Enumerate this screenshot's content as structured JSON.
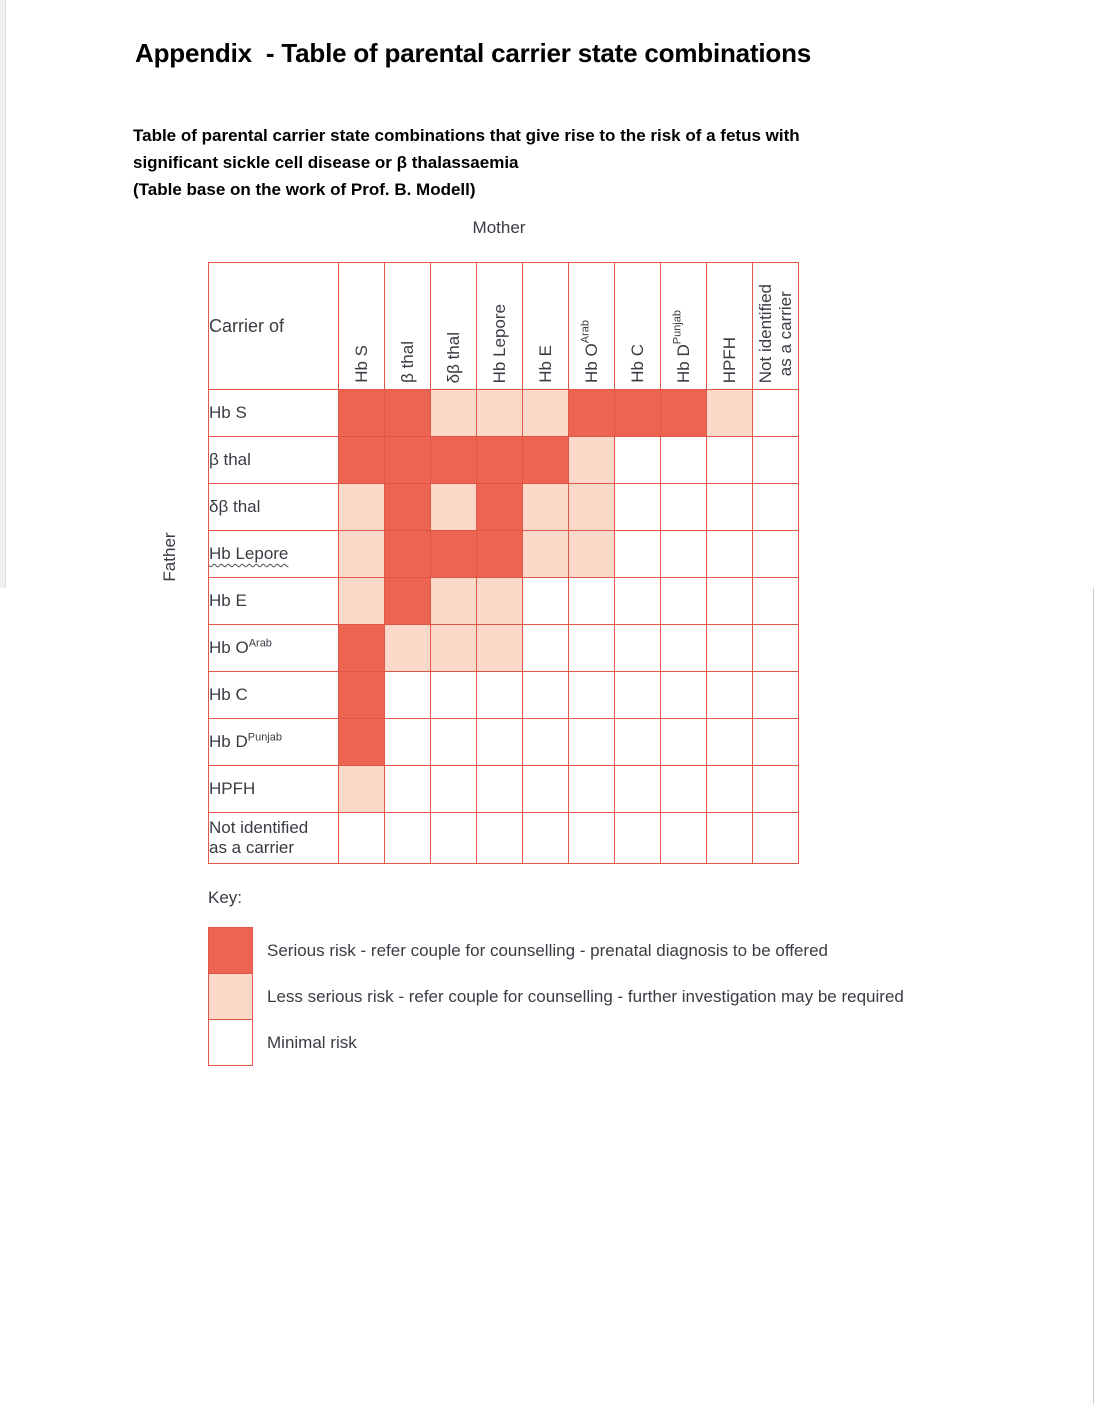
{
  "page": {
    "title": "Appendix  - Table of parental carrier state combinations",
    "subtitle_lines": [
      "Table of parental carrier state combinations that give rise to the risk of a fetus with",
      "significant sickle cell disease or β thalassaemia",
      "(Table base on the work of Prof. B. Modell)"
    ]
  },
  "table": {
    "mother_label": "Mother",
    "father_label": "Father",
    "corner_label": "Carrier of",
    "cell_legend": {
      "0": "minimal",
      "1": "less",
      "2": "serious"
    },
    "columns": [
      {
        "id": "hb-s",
        "text": "Hb S"
      },
      {
        "id": "beta-thal",
        "text": "β thal"
      },
      {
        "id": "delta-beta-thal",
        "text": "δβ thal"
      },
      {
        "id": "hb-lepore",
        "text": "Hb Lepore"
      },
      {
        "id": "hb-e",
        "text": "Hb E"
      },
      {
        "id": "hb-o-arab",
        "text": "Hb O",
        "sup": "Arab"
      },
      {
        "id": "hb-c",
        "text": "Hb C"
      },
      {
        "id": "hb-d-punjab",
        "text": "Hb D",
        "sup": "Punjab"
      },
      {
        "id": "hpfh",
        "text": "HPFH"
      },
      {
        "id": "not-identified",
        "lines": [
          "Not identified",
          "as a carrier"
        ]
      }
    ],
    "rows": [
      {
        "id": "hb-s",
        "label": {
          "text": "Hb S"
        },
        "cells": [
          2,
          2,
          1,
          1,
          1,
          2,
          2,
          2,
          1,
          0
        ]
      },
      {
        "id": "beta-thal",
        "label": {
          "text": "β thal"
        },
        "cells": [
          2,
          2,
          2,
          2,
          2,
          1,
          0,
          0,
          0,
          0
        ]
      },
      {
        "id": "delta-beta-thal",
        "label": {
          "text": "δβ thal"
        },
        "cells": [
          1,
          2,
          1,
          2,
          1,
          1,
          0,
          0,
          0,
          0
        ]
      },
      {
        "id": "hb-lepore",
        "label": {
          "text": "Hb Lepore",
          "wavy_underline": true
        },
        "cells": [
          1,
          2,
          2,
          2,
          1,
          1,
          0,
          0,
          0,
          0
        ]
      },
      {
        "id": "hb-e",
        "label": {
          "text": "Hb E"
        },
        "cells": [
          1,
          2,
          1,
          1,
          0,
          0,
          0,
          0,
          0,
          0
        ]
      },
      {
        "id": "hb-o-arab",
        "label": {
          "text": "Hb O",
          "sup": "Arab"
        },
        "cells": [
          2,
          1,
          1,
          1,
          0,
          0,
          0,
          0,
          0,
          0
        ]
      },
      {
        "id": "hb-c",
        "label": {
          "text": "Hb C"
        },
        "cells": [
          2,
          0,
          0,
          0,
          0,
          0,
          0,
          0,
          0,
          0
        ]
      },
      {
        "id": "hb-d-punjab",
        "label": {
          "text": "Hb D",
          "sup": "Punjab"
        },
        "cells": [
          2,
          0,
          0,
          0,
          0,
          0,
          0,
          0,
          0,
          0
        ]
      },
      {
        "id": "hpfh",
        "label": {
          "text": "HPFH"
        },
        "cells": [
          1,
          0,
          0,
          0,
          0,
          0,
          0,
          0,
          0,
          0
        ]
      },
      {
        "id": "not-identified",
        "label": {
          "lines": [
            "Not identified",
            "as a carrier"
          ]
        },
        "cells": [
          0,
          0,
          0,
          0,
          0,
          0,
          0,
          0,
          0,
          0
        ]
      }
    ]
  },
  "key": {
    "title": "Key:",
    "entries": [
      {
        "id": "serious",
        "color": "#ED6550",
        "label": "Serious risk - refer couple for counselling - prenatal diagnosis to be offered"
      },
      {
        "id": "less-serious",
        "color": "#FAD9C9",
        "label": "Less serious risk - refer couple for counselling - further investigation may be required"
      },
      {
        "id": "minimal",
        "color": "#FFFFFF",
        "label": "Minimal risk"
      }
    ]
  },
  "colors": {
    "serious": "#ED6550",
    "less": "#FAD9C9",
    "minimal": "#FFFFFF",
    "grid": "#E0574A",
    "label_text": "#3B3B44"
  }
}
